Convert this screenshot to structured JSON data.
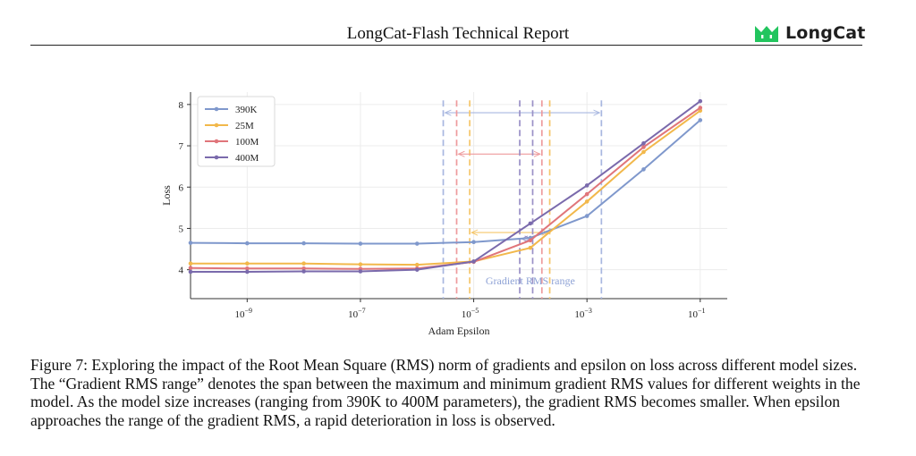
{
  "header": {
    "title": "LongCat-Flash Technical Report",
    "logo_text": "LongCat",
    "logo_color": "#22c55e"
  },
  "chart_data": {
    "type": "line",
    "xlabel": "Adam Epsilon",
    "ylabel": "Loss",
    "x_scale": "log",
    "xlim": [
      1e-10,
      0.3
    ],
    "ylim": [
      3.3,
      8.3
    ],
    "x_ticks": [
      {
        "value": 1e-09,
        "base": "10",
        "exp": "−9"
      },
      {
        "value": 1e-07,
        "base": "10",
        "exp": "−7"
      },
      {
        "value": 1e-05,
        "base": "10",
        "exp": "−5"
      },
      {
        "value": 0.001,
        "base": "10",
        "exp": "−3"
      },
      {
        "value": 0.1,
        "base": "10",
        "exp": "−1"
      }
    ],
    "y_ticks": [
      4,
      5,
      6,
      7,
      8
    ],
    "grid": true,
    "legend_position": "top-left",
    "x": [
      1e-10,
      1e-09,
      1e-08,
      1e-07,
      1e-06,
      1e-05,
      0.0001,
      0.001,
      0.01,
      0.1
    ],
    "series": [
      {
        "name": "390K",
        "color": "#7f98cc",
        "values": [
          4.65,
          4.64,
          4.64,
          4.63,
          4.63,
          4.67,
          4.77,
          5.3,
          6.43,
          7.62
        ]
      },
      {
        "name": "25M",
        "color": "#f2b84b",
        "values": [
          4.15,
          4.15,
          4.15,
          4.13,
          4.12,
          4.2,
          4.53,
          5.65,
          6.85,
          7.85
        ]
      },
      {
        "name": "100M",
        "color": "#e0757a",
        "values": [
          4.04,
          4.03,
          4.03,
          4.02,
          4.03,
          4.19,
          4.71,
          5.83,
          6.97,
          7.92
        ]
      },
      {
        "name": "400M",
        "color": "#7a6aac",
        "values": [
          3.95,
          3.95,
          3.96,
          3.96,
          4.0,
          4.2,
          5.12,
          6.04,
          7.06,
          8.08
        ]
      }
    ],
    "gradient_rms_ranges": [
      {
        "series": "390K",
        "color": "#a8b7e0",
        "min": 2.9e-06,
        "max": 0.0018,
        "arrow_y": 7.8
      },
      {
        "series": "25M",
        "color": "#f5c66a",
        "min": 8.5e-06,
        "max": 0.00022,
        "arrow_y": 4.9
      },
      {
        "series": "100M",
        "color": "#ee9a9c",
        "min": 5e-06,
        "max": 0.00016,
        "arrow_y": 6.8
      },
      {
        "series": "400M",
        "color": "#9a90c6",
        "min": 6.5e-05,
        "max": 0.00011,
        "arrow_y": 4.75
      }
    ],
    "annotation": "Gradient RMS range"
  },
  "caption": {
    "text": "Figure 7: Exploring the impact of the Root Mean Square (RMS) norm of gradients and epsilon on loss across different model sizes. The “Gradient RMS range” denotes the span between the maximum and minimum gradient RMS values for different weights in the model. As the model size increases (ranging from 390K to 400M parameters), the gradient RMS becomes smaller. When epsilon approaches the range of the gradient RMS, a rapid deterioration in loss is observed."
  }
}
